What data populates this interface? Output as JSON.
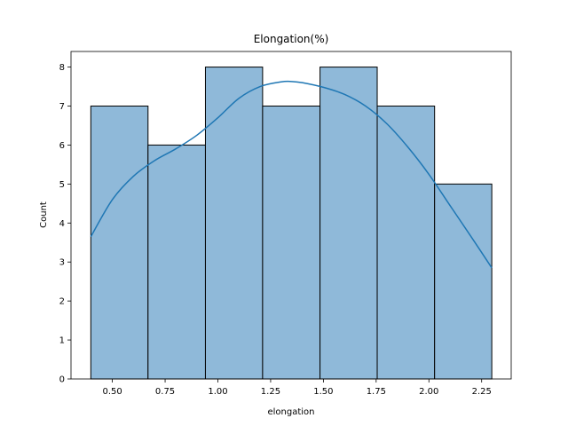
{
  "chart_data": {
    "type": "bar",
    "subtype": "histogram-with-kde",
    "title": "Elongation(%)",
    "xlabel": "elongation",
    "ylabel": "Count",
    "xlim": [
      0.304,
      2.39
    ],
    "ylim": [
      0,
      8.4
    ],
    "xticks": [
      0.5,
      0.75,
      1.0,
      1.25,
      1.5,
      1.75,
      2.0,
      2.25
    ],
    "xtick_labels": [
      "0.50",
      "0.75",
      "1.00",
      "1.25",
      "1.50",
      "1.75",
      "2.00",
      "2.25"
    ],
    "yticks": [
      0,
      1,
      2,
      3,
      4,
      5,
      6,
      7,
      8
    ],
    "ytick_labels": [
      "0",
      "1",
      "2",
      "3",
      "4",
      "5",
      "6",
      "7",
      "8"
    ],
    "bins": [
      {
        "x0": 0.398,
        "x1": 0.669,
        "count": 7
      },
      {
        "x0": 0.669,
        "x1": 0.941,
        "count": 6
      },
      {
        "x0": 0.941,
        "x1": 1.212,
        "count": 8
      },
      {
        "x0": 1.212,
        "x1": 1.484,
        "count": 7
      },
      {
        "x0": 1.484,
        "x1": 1.755,
        "count": 8
      },
      {
        "x0": 1.755,
        "x1": 2.027,
        "count": 7
      },
      {
        "x0": 2.027,
        "x1": 2.298,
        "count": 5
      }
    ],
    "kde": {
      "x": [
        0.398,
        0.5,
        0.6,
        0.7,
        0.8,
        0.9,
        1.0,
        1.1,
        1.2,
        1.3,
        1.35,
        1.4,
        1.5,
        1.6,
        1.7,
        1.8,
        1.9,
        2.0,
        2.1,
        2.2,
        2.298
      ],
      "y": [
        3.65,
        4.6,
        5.2,
        5.6,
        5.9,
        6.25,
        6.7,
        7.2,
        7.5,
        7.62,
        7.63,
        7.6,
        7.48,
        7.3,
        7.0,
        6.55,
        5.95,
        5.25,
        4.45,
        3.65,
        2.85
      ]
    },
    "grid": false,
    "colors": {
      "bar_fill": "#8fb9d9",
      "bar_edge": "#000000",
      "kde_line": "#1f77b4"
    }
  }
}
